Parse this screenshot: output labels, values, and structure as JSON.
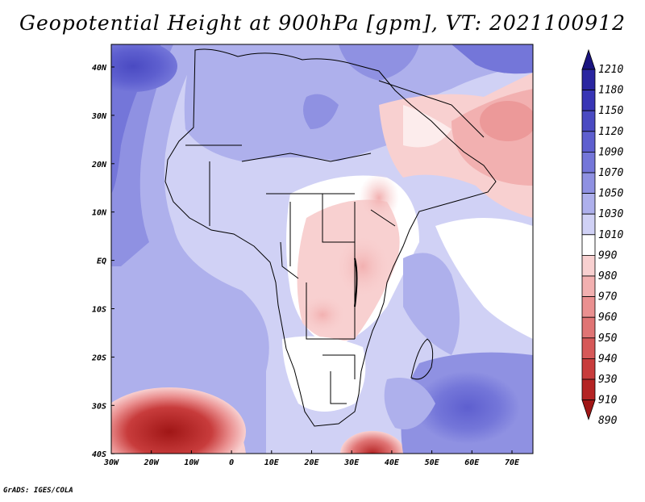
{
  "title": "Geopotential Height at 900hPa [gpm], VT: 2021100912",
  "credit": "GrADS: IGES/COLA",
  "axes": {
    "x_ticks": [
      "30W",
      "20W",
      "10W",
      "0",
      "10E",
      "20E",
      "30E",
      "40E",
      "50E",
      "60E",
      "70E"
    ],
    "y_ticks": [
      "40N",
      "30N",
      "20N",
      "10N",
      "EQ",
      "10S",
      "20S",
      "30S",
      "40S"
    ]
  },
  "colorbar": {
    "labels": [
      "1210",
      "1180",
      "1150",
      "1120",
      "1090",
      "1070",
      "1050",
      "1030",
      "1010",
      "990",
      "980",
      "970",
      "960",
      "950",
      "940",
      "930",
      "910",
      "890"
    ],
    "colors": [
      "#1a1480",
      "#2a25a0",
      "#3835b5",
      "#4a4ac2",
      "#5e5fcf",
      "#7476d9",
      "#8f91e2",
      "#aeb0ec",
      "#d0d1f5",
      "#ffffff",
      "#f8d0d0",
      "#f2b0b0",
      "#ea9090",
      "#e07474",
      "#d65858",
      "#c83c3c",
      "#b42424",
      "#a01616"
    ]
  },
  "map": {
    "region": "Africa",
    "level": "900hPa",
    "variable": "Geopotential Height"
  }
}
